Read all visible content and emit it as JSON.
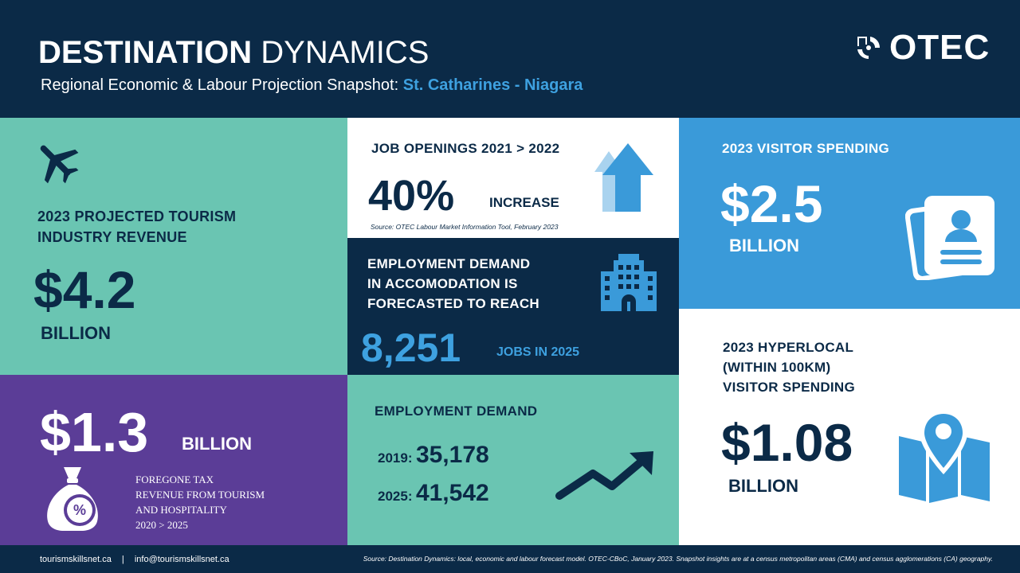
{
  "header": {
    "title_bold": "DESTINATION",
    "title_light": "DYNAMICS",
    "subtitle_prefix": "Regional Economic & Labour Projection Snapshot:",
    "subtitle_region": "St. Catharines - Niagara",
    "logo_text": "OTEC"
  },
  "tourism": {
    "icon": "airplane-icon",
    "label_line1": "2023 PROJECTED TOURISM",
    "label_line2": "INDUSTRY REVENUE",
    "value": "$4.2",
    "unit": "BILLION"
  },
  "tax": {
    "value": "$1.3",
    "unit": "BILLION",
    "icon": "money-bag-percent-icon",
    "desc_line1": "FOREGONE TAX",
    "desc_line2": "REVENUE FROM TOURISM",
    "desc_line3": "AND HOSPITALITY",
    "desc_line4": "2020 > 2025"
  },
  "jobs": {
    "label": "JOB OPENINGS  2021 > 2022",
    "value": "40%",
    "suffix": "INCREASE",
    "icon": "up-arrow-icon",
    "source": "Source: OTEC Labour Market Information Tool, February 2023"
  },
  "accom": {
    "label_line1": "EMPLOYMENT  DEMAND",
    "label_line2": "IN ACCOMODATION  IS",
    "label_line3": "FORECASTED TO REACH",
    "icon": "hotel-building-icon",
    "value": "8,251",
    "suffix": "JOBS IN 2025"
  },
  "demand": {
    "label": "EMPLOYMENT  DEMAND",
    "rows": [
      {
        "year": "2019:",
        "value": "35,178"
      },
      {
        "year": "2025:",
        "value": "41,542"
      }
    ],
    "icon": "trend-up-arrow-icon"
  },
  "visitor": {
    "label": "2023 VISITOR  SPENDING",
    "value": "$2.5",
    "unit": "BILLION",
    "icon": "id-cards-icon"
  },
  "hyper": {
    "label_line1": "2023 HYPERLOCAL",
    "label_line2": "(WITHIN 100KM)",
    "label_line3": "VISITOR SPENDING",
    "value": "$1.08",
    "unit": "BILLION",
    "icon": "map-pin-icon"
  },
  "footer": {
    "website": "tourismskillsnet.ca",
    "separator": "|",
    "email": "info@tourismskillsnet.ca",
    "source": "Source: Destination Dynamics: local, economic and labour forecast model. OTEC-CBoC, January 2023. Snapshot insights are at a census metropolitan areas (CMA) and census agglomerations (CA) geography."
  },
  "colors": {
    "navy": "#0b2a47",
    "teal": "#6ac5b2",
    "purple": "#5b3d97",
    "blue": "#3a9ad9",
    "accent_blue": "#3ea1e0",
    "white": "#ffffff"
  }
}
